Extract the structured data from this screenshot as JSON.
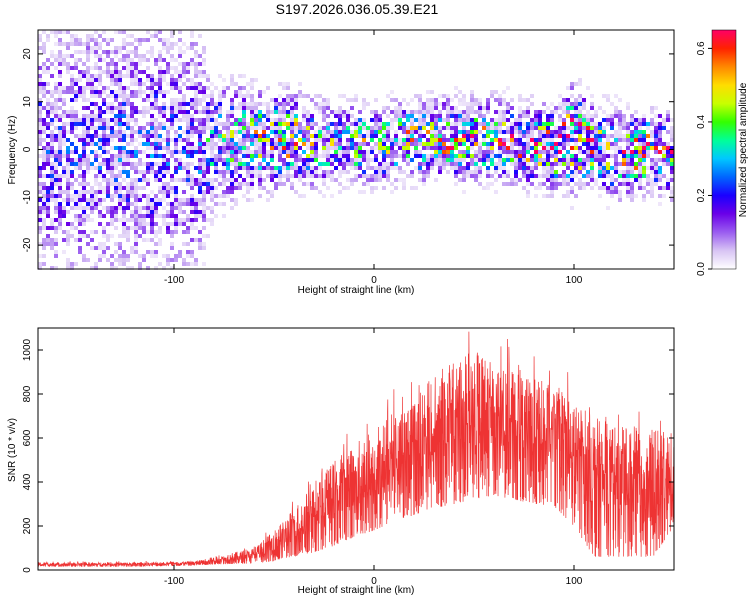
{
  "title": "S197.2026.036.05.39.E21",
  "chart_data": [
    {
      "type": "heatmap",
      "xlabel": "Height of straight line (km)",
      "ylabel": "Frequency (Hz)",
      "xlim": [
        -168,
        150
      ],
      "ylim": [
        -25,
        25
      ],
      "xticks": [
        -100,
        0,
        100
      ],
      "yticks": [
        -20,
        -10,
        0,
        10,
        20
      ],
      "colorbar": {
        "label": "Normalized spectral amplitude",
        "range": [
          0,
          0.65
        ],
        "ticks": [
          0.0,
          0.2,
          0.4,
          0.6
        ],
        "colormap": [
          "#ffffff",
          "#d8c4f4",
          "#9a5cf0",
          "#6a00e8",
          "#1a00ff",
          "#0066ff",
          "#00c8ff",
          "#00ff99",
          "#33ff00",
          "#c8ff00",
          "#ffdd00",
          "#ff8800",
          "#ff2200",
          "#ff0066"
        ]
      },
      "profile": {
        "x": [
          -168,
          -140,
          -110,
          -90,
          -80,
          -60,
          -40,
          -20,
          0,
          20,
          40,
          60,
          80,
          90,
          100,
          110,
          120,
          130,
          140,
          150
        ],
        "center_hz": [
          0,
          0,
          0,
          0,
          1,
          2,
          2,
          1,
          1,
          2,
          2,
          2,
          1,
          0,
          2,
          1,
          -1,
          -1,
          0,
          -2
        ],
        "halfwidth_hz": [
          25,
          25,
          25,
          25,
          11,
          9,
          8,
          7,
          7,
          7,
          7,
          7,
          7,
          7,
          9,
          7,
          8,
          7,
          7,
          7
        ],
        "peak_amplitude": [
          0.14,
          0.15,
          0.16,
          0.14,
          0.24,
          0.36,
          0.38,
          0.3,
          0.32,
          0.36,
          0.38,
          0.4,
          0.42,
          0.46,
          0.52,
          0.42,
          0.34,
          0.4,
          0.4,
          0.42
        ]
      }
    },
    {
      "type": "line",
      "xlabel": "Height of straight line (km)",
      "ylabel": "SNR (10 * v/v)",
      "xlim": [
        -168,
        150
      ],
      "ylim": [
        0,
        1100
      ],
      "xticks": [
        -100,
        0,
        100
      ],
      "yticks": [
        0,
        200,
        400,
        600,
        800,
        1000
      ],
      "color": "#ee3333",
      "envelope": {
        "x": [
          -168,
          -120,
          -90,
          -80,
          -60,
          -50,
          -40,
          -30,
          -20,
          -10,
          0,
          10,
          20,
          30,
          40,
          50,
          60,
          70,
          80,
          90,
          100,
          110,
          120,
          130,
          140,
          150
        ],
        "low": [
          15,
          15,
          20,
          25,
          30,
          40,
          60,
          80,
          110,
          150,
          180,
          220,
          250,
          280,
          300,
          320,
          340,
          320,
          300,
          290,
          200,
          60,
          60,
          60,
          60,
          200
        ],
        "high": [
          35,
          35,
          40,
          60,
          100,
          180,
          280,
          400,
          500,
          580,
          650,
          720,
          800,
          880,
          950,
          1000,
          950,
          900,
          870,
          850,
          780,
          700,
          650,
          650,
          640,
          620
        ]
      }
    }
  ]
}
